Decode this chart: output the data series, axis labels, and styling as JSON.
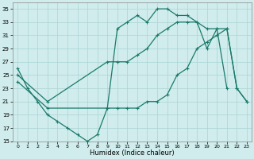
{
  "xlabel": "Humidex (Indice chaleur)",
  "bg_color": "#d0ecec",
  "grid_color": "#aad4d4",
  "line_color": "#1a7a6a",
  "xlim": [
    -0.5,
    23.5
  ],
  "ylim": [
    15,
    36
  ],
  "xticks": [
    0,
    1,
    2,
    3,
    4,
    5,
    6,
    7,
    8,
    9,
    10,
    11,
    12,
    13,
    14,
    15,
    16,
    17,
    18,
    19,
    20,
    21,
    22,
    23
  ],
  "yticks": [
    15,
    17,
    19,
    21,
    23,
    25,
    27,
    29,
    31,
    33,
    35
  ],
  "line1_x": [
    0,
    1,
    2,
    3,
    4,
    5,
    6,
    7,
    8,
    9,
    10,
    11,
    12,
    13,
    14,
    15,
    16,
    17,
    18,
    19,
    20,
    21
  ],
  "line1_y": [
    26,
    23,
    21,
    19,
    18,
    17,
    16,
    15,
    16,
    20,
    32,
    33,
    34,
    33,
    35,
    35,
    34,
    34,
    33,
    29,
    32,
    23
  ],
  "line2_x": [
    0,
    3,
    9,
    10,
    11,
    12,
    13,
    14,
    15,
    16,
    17,
    18,
    19,
    20,
    21,
    22,
    23
  ],
  "line2_y": [
    25,
    21,
    27,
    27,
    27,
    28,
    29,
    31,
    32,
    33,
    33,
    33,
    32,
    32,
    32,
    23,
    21
  ],
  "line3_x": [
    0,
    3,
    9,
    10,
    11,
    12,
    13,
    14,
    15,
    16,
    17,
    18,
    19,
    20,
    21,
    22,
    23
  ],
  "line3_y": [
    24,
    20,
    20,
    20,
    20,
    20,
    21,
    21,
    22,
    25,
    26,
    29,
    30,
    31,
    32,
    23,
    21
  ]
}
